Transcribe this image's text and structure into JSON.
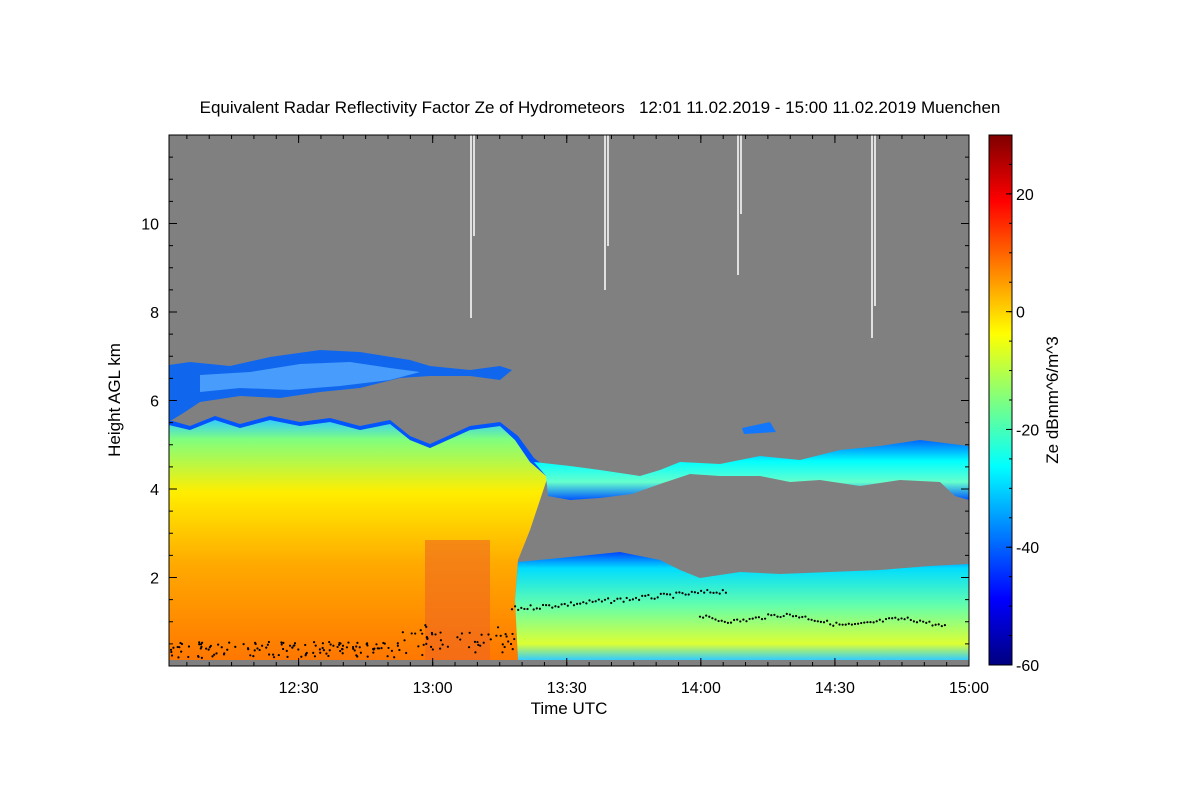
{
  "chart_data": {
    "type": "heatmap",
    "title": "Equivalent Radar Reflectivity Factor Ze of Hydrometeors   12:01 11.02.2019 - 15:00 11.02.2019 Muenchen",
    "xlabel": "Time UTC",
    "ylabel": "Height AGL km",
    "colorbar_label": "Ze dBmm^6/m^3",
    "x_range": [
      "12:01",
      "15:00"
    ],
    "x_ticks": [
      "12:30",
      "13:00",
      "13:30",
      "14:00",
      "14:30",
      "15:00"
    ],
    "y_range_km": [
      0,
      12
    ],
    "y_ticks": [
      "2",
      "4",
      "6",
      "8",
      "10"
    ],
    "colorbar_range": [
      -60,
      30
    ],
    "colorbar_ticks": [
      "20",
      "0",
      "-20",
      "-40",
      "-60"
    ],
    "colormap": [
      "#00007f",
      "#0000ff",
      "#007fff",
      "#00ffff",
      "#7fff7f",
      "#ffff00",
      "#ff7f00",
      "#ff0000",
      "#7f0000"
    ],
    "no_data_color": "#808080",
    "layers": [
      {
        "name": "upper cloud layer",
        "time_start": "12:01",
        "time_end": "13:18",
        "base_km": 6.0,
        "top_km": 7.0,
        "ze_dbz": -38
      },
      {
        "name": "main precipitation",
        "time_start": "12:01",
        "time_end": "13:20",
        "base_km": 0,
        "top_km": 5.4,
        "ze_dbz": 5
      },
      {
        "name": "low precipitation layer",
        "time_start": "13:20",
        "time_end": "15:00",
        "base_km": 0,
        "top_km": 2.3,
        "ze_dbz": -18
      },
      {
        "name": "mid-level cloud",
        "time_start": "13:20",
        "time_end": "15:00",
        "base_km": 3.9,
        "top_km": 5.0,
        "ze_dbz": -25
      }
    ]
  }
}
